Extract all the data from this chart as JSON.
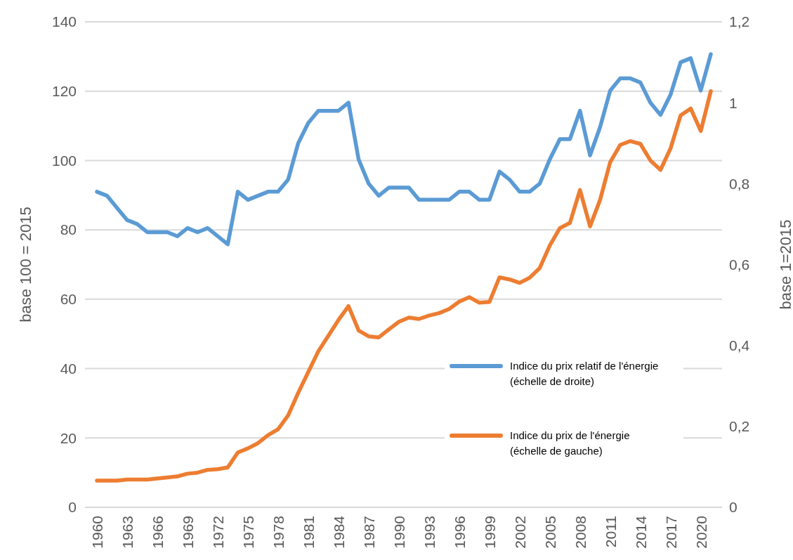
{
  "chart_data": {
    "type": "line",
    "ylabel": "base 100 = 2015",
    "y2label": "base 1=2015",
    "categories": [
      "1960",
      null,
      null,
      "1963",
      null,
      null,
      "1966",
      null,
      null,
      "1969",
      null,
      null,
      "1972",
      null,
      null,
      "1975",
      null,
      null,
      "1978",
      null,
      null,
      "1981",
      null,
      null,
      "1984",
      null,
      null,
      "1987",
      null,
      null,
      "1990",
      null,
      null,
      "1993",
      null,
      null,
      "1996",
      null,
      null,
      "1999",
      null,
      null,
      "2002",
      null,
      null,
      "2005",
      null,
      null,
      "2008",
      null,
      null,
      "2011",
      null,
      null,
      "2014",
      null,
      null,
      "2017",
      null,
      null,
      "2020",
      null
    ],
    "series": [
      {
        "name": "Indice du prix relatif de l'énergie (échelle de droite)",
        "color": "#5b9bd5",
        "axis": "y2",
        "values": [
          0.78,
          0.77,
          0.74,
          0.71,
          0.7,
          0.68,
          0.68,
          0.68,
          0.67,
          0.69,
          0.68,
          0.69,
          0.67,
          0.65,
          0.78,
          0.76,
          0.77,
          0.78,
          0.78,
          0.81,
          0.9,
          0.95,
          0.98,
          0.98,
          0.98,
          1.0,
          0.86,
          0.8,
          0.77,
          0.79,
          0.79,
          0.79,
          0.76,
          0.76,
          0.76,
          0.76,
          0.78,
          0.78,
          0.76,
          0.76,
          0.83,
          0.81,
          0.78,
          0.78,
          0.8,
          0.86,
          0.91,
          0.91,
          0.98,
          0.87,
          0.94,
          1.03,
          1.06,
          1.06,
          1.05,
          1.0,
          0.97,
          1.02,
          1.1,
          1.11,
          1.03,
          1.12
        ]
      },
      {
        "name": "Indice du prix de l'énergie (échelle de gauche)",
        "color": "#ed7d31",
        "values": [
          7.7,
          7.7,
          7.7,
          8,
          8,
          8,
          8.3,
          8.6,
          8.9,
          9.7,
          10,
          10.8,
          11,
          11.5,
          15.8,
          17,
          18.5,
          20.8,
          22.5,
          26.5,
          33,
          39,
          45,
          49.5,
          54,
          58,
          51,
          49.3,
          49,
          51.3,
          53.5,
          54.7,
          54.3,
          55.3,
          56,
          57.2,
          59.3,
          60.6,
          59,
          59.2,
          66.3,
          65.7,
          64.7,
          66.2,
          69,
          75.5,
          80.5,
          82,
          91.5,
          81,
          88.7,
          99.5,
          104.5,
          105.6,
          104.8,
          100,
          97.3,
          103.5,
          113,
          115,
          108.5,
          120
        ]
      }
    ],
    "ylim": [
      0,
      140
    ],
    "yticks": [
      0,
      20,
      40,
      60,
      80,
      100,
      120,
      140
    ],
    "y2lim": [
      0,
      1.2
    ],
    "y2ticks": [
      {
        "value": 0,
        "label": "0"
      },
      {
        "value": 0.2,
        "label": "0,2"
      },
      {
        "value": 0.4,
        "label": "0,4"
      },
      {
        "value": 0.6,
        "label": "0,6"
      },
      {
        "value": 0.8,
        "label": "0,8"
      },
      {
        "value": 1,
        "label": "1"
      },
      {
        "value": 1.2,
        "label": "1,2"
      }
    ],
    "grid": "y",
    "legend": "right",
    "marker": "none",
    "line_style": "solid"
  }
}
